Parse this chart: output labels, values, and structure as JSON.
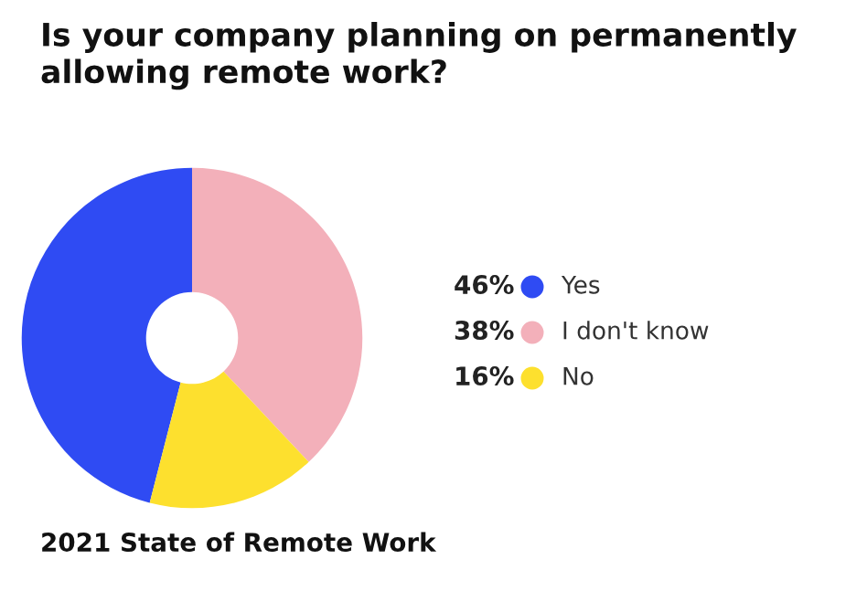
{
  "chart_data": {
    "type": "donut",
    "title": "Is your company planning on permanently allowing remote work?",
    "categories": [
      "Yes",
      "I don't know",
      "No"
    ],
    "values": [
      46,
      38,
      16
    ],
    "colors": [
      "#2f4bf3",
      "#f3b0ba",
      "#fde02e"
    ],
    "value_labels": [
      "46%",
      "38%",
      "16%"
    ],
    "legend": "right",
    "annotations": [
      "2021 State of Remote Work"
    ]
  }
}
